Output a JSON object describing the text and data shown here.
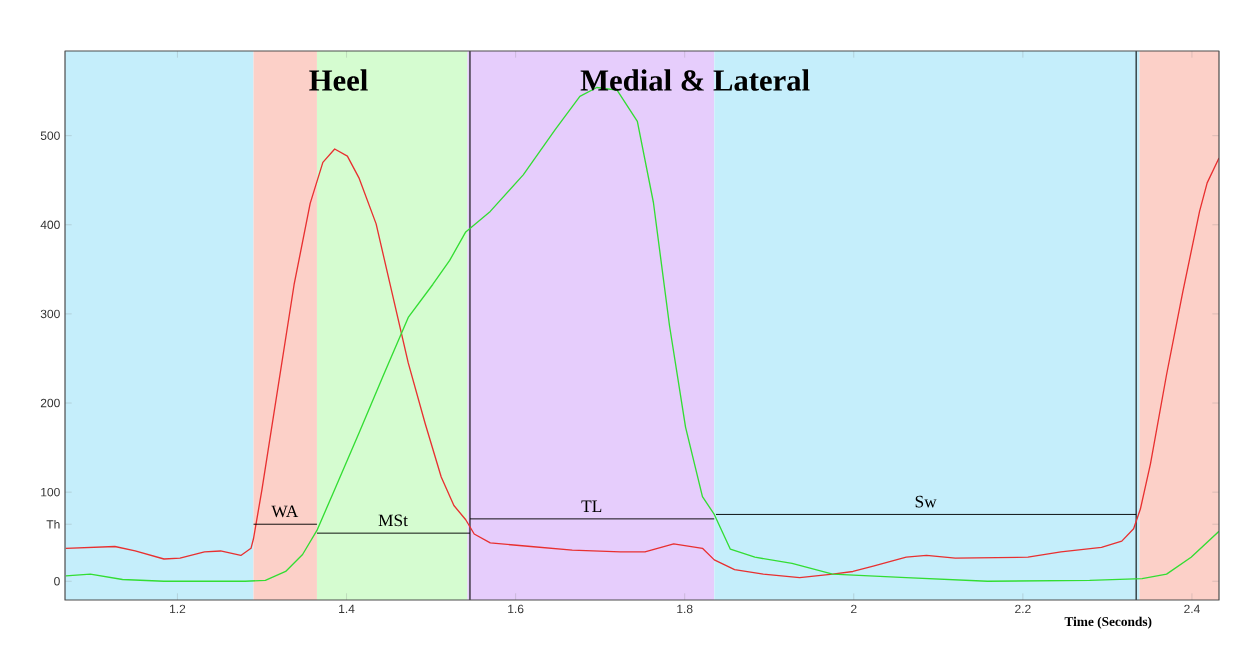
{
  "chart_data": {
    "type": "line",
    "xlabel": "Time (Seconds)",
    "x": [
      1.068,
      1.126,
      1.15,
      1.184,
      1.203,
      1.232,
      1.251,
      1.275,
      1.287,
      1.29,
      1.3,
      1.319,
      1.338,
      1.357,
      1.372,
      1.386,
      1.401,
      1.415,
      1.435,
      1.454,
      1.473,
      1.493,
      1.512,
      1.527,
      1.541,
      1.551,
      1.57,
      1.618,
      1.667,
      1.724,
      1.753,
      1.787,
      1.821,
      1.835,
      1.859,
      1.893,
      1.936,
      1.975,
      1.999,
      2.023,
      2.062,
      2.086,
      2.12,
      2.206,
      2.245,
      2.293,
      2.317,
      2.331,
      2.339,
      2.351,
      2.37,
      2.389,
      2.409,
      2.418,
      2.432
    ],
    "series": [
      {
        "color": "#e83030",
        "values": [
          37,
          39,
          34,
          25,
          26,
          33,
          34,
          29,
          37,
          48,
          103,
          218,
          333,
          424,
          470,
          485,
          477,
          452,
          401,
          323,
          245,
          177,
          117,
          85,
          69,
          53,
          43,
          39,
          35,
          33,
          33,
          42,
          37,
          24,
          13,
          8,
          4,
          8,
          11,
          17,
          27,
          29,
          26,
          27,
          33,
          38,
          45,
          59,
          81,
          132,
          232,
          324,
          415,
          447,
          475
        ]
      },
      {
        "color": "#33dd33",
        "x": [
          1.068,
          1.097,
          1.135,
          1.184,
          1.28,
          1.304,
          1.328,
          1.348,
          1.365,
          1.386,
          1.415,
          1.444,
          1.473,
          1.502,
          1.522,
          1.541,
          1.57,
          1.609,
          1.647,
          1.676,
          1.696,
          1.72,
          1.744,
          1.763,
          1.782,
          1.801,
          1.821,
          1.835,
          1.854,
          1.883,
          1.927,
          1.975,
          2.062,
          2.158,
          2.279,
          2.341,
          2.37,
          2.399,
          2.432
        ],
        "values": [
          6,
          8,
          2,
          0,
          0,
          1,
          11,
          30,
          57,
          103,
          167,
          232,
          296,
          333,
          360,
          392,
          415,
          456,
          507,
          544,
          554,
          551,
          516,
          425,
          287,
          173,
          95,
          75,
          36,
          27,
          20,
          8,
          4,
          0,
          1,
          3,
          8,
          27,
          56
        ]
      },
      {
        "color": "#000000",
        "x": [
          1.29,
          1.365
        ],
        "values": [
          64,
          64
        ]
      },
      {
        "color": "#000000",
        "x": [
          1.365,
          1.546
        ],
        "values": [
          54,
          54
        ]
      },
      {
        "color": "#000000",
        "x": [
          1.546,
          1.835
        ],
        "values": [
          70,
          70
        ]
      },
      {
        "color": "#000000",
        "x": [
          1.837,
          2.334
        ],
        "values": [
          75,
          75
        ]
      }
    ],
    "bands": [
      {
        "axis": "x",
        "from": 1.067,
        "to": 1.29,
        "color": "#c5eefb"
      },
      {
        "axis": "x",
        "from": 1.29,
        "to": 1.365,
        "color": "#fcd0c8"
      },
      {
        "axis": "x",
        "from": 1.365,
        "to": 1.543,
        "color": "#d5fcd0"
      },
      {
        "axis": "x",
        "from": 1.543,
        "to": 1.835,
        "color": "#e6cdfc"
      },
      {
        "axis": "x",
        "from": 1.835,
        "to": 2.338,
        "color": "#c5eefb"
      },
      {
        "axis": "x",
        "from": 2.338,
        "to": 2.432,
        "color": "#fcd0c8"
      }
    ],
    "ref_lines": [
      {
        "axis": "x",
        "value": 1.546,
        "color": "#000000"
      },
      {
        "axis": "x",
        "value": 2.334,
        "color": "#000000"
      }
    ],
    "annotations": [
      "**Heel**",
      "**Medial & Lateral**",
      {
        "text": "WA",
        "x": 1.327,
        "y": 64
      },
      {
        "text": "MSt",
        "x": 1.455,
        "y": 54
      },
      {
        "text": "TL",
        "x": 1.69,
        "y": 70
      },
      {
        "text": "Sw",
        "x": 2.085,
        "y": 75
      }
    ],
    "xlim": [
      1.067,
      2.432
    ],
    "ylim": [
      -21,
      595
    ],
    "xticks": [
      1.2,
      1.4,
      1.6,
      1.8,
      2,
      2.2,
      2.4
    ],
    "yticks": [
      0,
      100,
      200,
      300,
      400,
      500,
      {
        "value": 64,
        "label": "Th"
      }
    ],
    "grid": false,
    "line_style": "solid",
    "marker": "none"
  }
}
